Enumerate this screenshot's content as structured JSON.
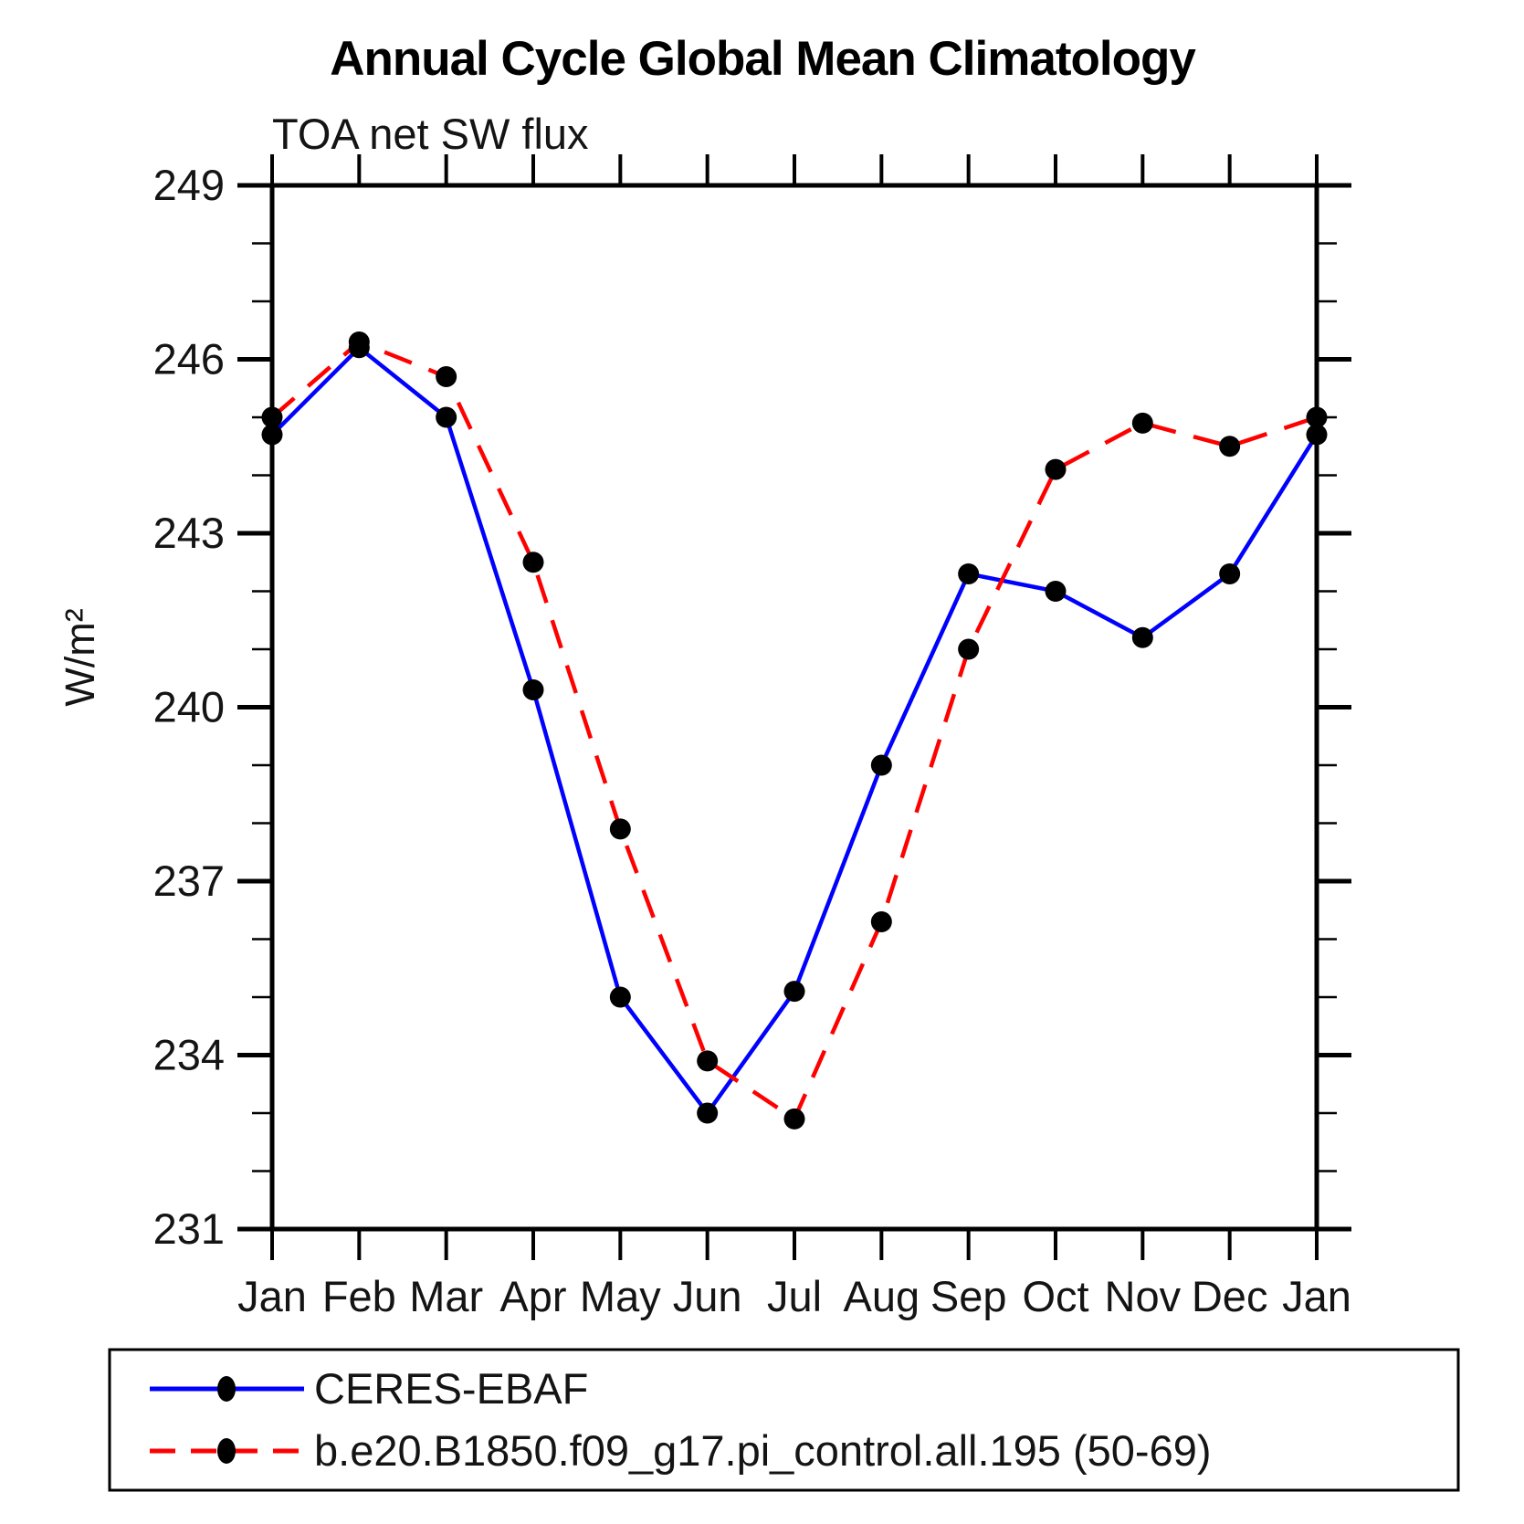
{
  "page": {
    "background": "#ffffff"
  },
  "chart_data": {
    "type": "line",
    "title": "Annual Cycle Global Mean Climatology",
    "subtitle": "TOA net SW flux",
    "ylabel": "W/m²",
    "xlabel": "",
    "categories": [
      "Jan",
      "Feb",
      "Mar",
      "Apr",
      "May",
      "Jun",
      "Jul",
      "Aug",
      "Sep",
      "Oct",
      "Nov",
      "Dec",
      "Jan"
    ],
    "ylim": [
      231,
      249
    ],
    "y_major_ticks": [
      231,
      234,
      237,
      240,
      243,
      246,
      249
    ],
    "y_minor_step": 1,
    "grid": "off",
    "legend_position": "bottom-box",
    "marker_color": "#000000",
    "axis_color": "#000000",
    "series": [
      {
        "name": "CERES-EBAF",
        "color": "#0000ff",
        "line_style": "solid",
        "values": [
          244.7,
          246.2,
          245.0,
          240.3,
          235.0,
          233.0,
          235.1,
          239.0,
          242.3,
          242.0,
          241.2,
          242.3,
          244.7
        ]
      },
      {
        "name": "b.e20.B1850.f09_g17.pi_control.all.195 (50-69)",
        "color": "#ff0000",
        "line_style": "dashed",
        "values": [
          245.0,
          246.3,
          245.7,
          242.5,
          237.9,
          233.9,
          232.9,
          236.3,
          241.0,
          244.1,
          244.9,
          244.5,
          245.0
        ]
      }
    ]
  }
}
